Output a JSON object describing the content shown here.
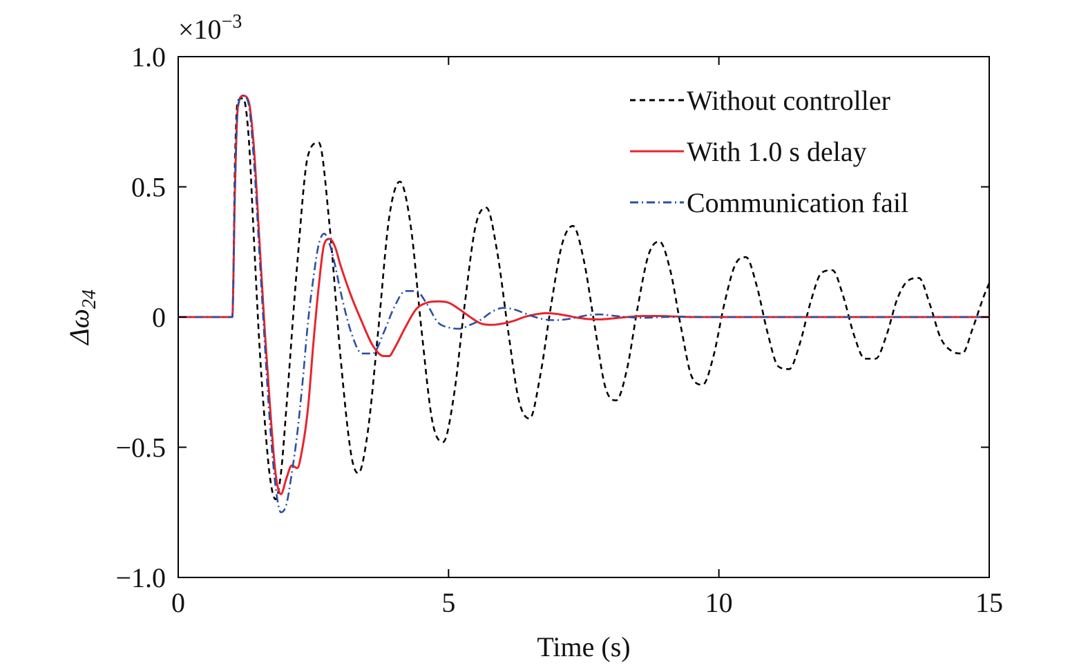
{
  "chart_data": {
    "type": "line",
    "title": "",
    "xlabel": "Time (s)",
    "ylabel_main": "Δω",
    "ylabel_sub": "24",
    "y_scale_prefix": "×10",
    "y_scale_exponent": "−3",
    "xlim": [
      0,
      15
    ],
    "ylim": [
      -1.0,
      1.0
    ],
    "x_ticks": [
      0,
      5,
      10,
      15
    ],
    "x_tick_labels": [
      "0",
      "5",
      "10",
      "15"
    ],
    "y_ticks": [
      1.0,
      0.5,
      0,
      -0.5,
      -1.0
    ],
    "y_tick_labels": [
      "1.0",
      "0.5",
      "0",
      "−0.5",
      "−1.0"
    ],
    "grid": false,
    "legend_position": "top-right",
    "series": [
      {
        "name": "Without controller",
        "color": "#000000",
        "style": "dashed",
        "x": [
          0,
          1.0,
          1.05,
          1.1,
          1.2,
          1.3,
          1.4,
          1.5,
          1.6,
          1.7,
          1.8,
          1.9,
          2.0,
          2.2,
          2.4,
          2.6,
          2.8,
          3.0,
          3.2,
          3.33,
          3.5,
          3.7,
          3.9,
          4.1,
          4.3,
          4.5,
          4.7,
          4.9,
          5.1,
          5.3,
          5.5,
          5.7,
          5.9,
          6.1,
          6.3,
          6.5,
          6.7,
          6.9,
          7.1,
          7.3,
          7.5,
          7.7,
          7.9,
          8.1,
          8.3,
          8.5,
          8.7,
          8.9,
          9.1,
          9.3,
          9.5,
          9.7,
          9.9,
          10.1,
          10.3,
          10.5,
          10.7,
          10.9,
          11.1,
          11.3,
          11.5,
          11.7,
          11.9,
          12.1,
          12.3,
          12.5,
          12.7,
          12.9,
          13.1,
          13.3,
          13.5,
          13.7,
          13.9,
          14.1,
          14.3,
          14.5,
          14.7,
          14.9,
          15.0
        ],
        "values": [
          0,
          0,
          0.6,
          0.83,
          0.84,
          0.7,
          0.3,
          -0.1,
          -0.4,
          -0.62,
          -0.7,
          -0.6,
          -0.35,
          0.2,
          0.62,
          0.67,
          0.35,
          -0.15,
          -0.53,
          -0.6,
          -0.45,
          -0.05,
          0.38,
          0.52,
          0.35,
          -0.05,
          -0.4,
          -0.48,
          -0.3,
          0.05,
          0.35,
          0.42,
          0.25,
          -0.05,
          -0.32,
          -0.39,
          -0.22,
          0.05,
          0.28,
          0.35,
          0.22,
          -0.03,
          -0.27,
          -0.32,
          -0.2,
          0.04,
          0.24,
          0.29,
          0.18,
          -0.04,
          -0.23,
          -0.26,
          -0.15,
          0.05,
          0.2,
          0.23,
          0.12,
          -0.06,
          -0.19,
          -0.2,
          -0.1,
          0.06,
          0.17,
          0.18,
          0.08,
          -0.07,
          -0.16,
          -0.16,
          -0.07,
          0.07,
          0.14,
          0.15,
          0.05,
          -0.08,
          -0.13,
          -0.14,
          -0.04,
          0.08,
          0.13
        ]
      },
      {
        "name": "With 1.0 s delay",
        "color": "#e8242c",
        "style": "solid",
        "x": [
          0,
          1.0,
          1.05,
          1.1,
          1.2,
          1.3,
          1.4,
          1.5,
          1.6,
          1.7,
          1.8,
          1.9,
          2.0,
          2.1,
          2.2,
          2.3,
          2.4,
          2.5,
          2.6,
          2.7,
          2.8,
          2.9,
          3.0,
          3.2,
          3.4,
          3.6,
          3.8,
          3.9,
          4.0,
          4.2,
          4.4,
          4.6,
          4.8,
          5.0,
          5.2,
          5.4,
          5.6,
          5.8,
          6.0,
          6.2,
          6.4,
          6.6,
          6.8,
          7.0,
          7.2,
          7.4,
          7.6,
          7.8,
          8.0,
          8.3,
          8.6,
          8.9,
          9.2,
          9.5,
          10.0,
          11.0,
          12.0,
          13.0,
          14.0,
          15.0
        ],
        "values": [
          0,
          0,
          0.5,
          0.8,
          0.85,
          0.83,
          0.65,
          0.3,
          -0.05,
          -0.35,
          -0.6,
          -0.68,
          -0.62,
          -0.57,
          -0.58,
          -0.5,
          -0.35,
          -0.1,
          0.12,
          0.28,
          0.3,
          0.27,
          0.2,
          0.08,
          -0.02,
          -0.11,
          -0.15,
          -0.15,
          -0.12,
          -0.04,
          0.03,
          0.055,
          0.06,
          0.055,
          0.03,
          0.0,
          -0.025,
          -0.03,
          -0.025,
          -0.015,
          0.0,
          0.01,
          0.015,
          0.012,
          0.005,
          -0.003,
          -0.008,
          -0.009,
          -0.006,
          0.0,
          0.004,
          0.004,
          0.002,
          0.0,
          0,
          0,
          0,
          0,
          0,
          0
        ]
      },
      {
        "name": "Communication fail",
        "color": "#2b4fa3",
        "style": "dashdot",
        "x": [
          0,
          1.0,
          1.05,
          1.1,
          1.2,
          1.3,
          1.4,
          1.5,
          1.6,
          1.7,
          1.8,
          1.9,
          2.0,
          2.1,
          2.2,
          2.3,
          2.4,
          2.5,
          2.6,
          2.7,
          2.8,
          2.9,
          3.0,
          3.2,
          3.4,
          3.6,
          3.8,
          4.0,
          4.2,
          4.4,
          4.6,
          4.8,
          5.0,
          5.2,
          5.4,
          5.6,
          5.8,
          6.0,
          6.2,
          6.4,
          6.6,
          6.8,
          7.0,
          7.2,
          7.4,
          7.6,
          7.8,
          8.0,
          8.3,
          8.6,
          9.0,
          9.5,
          10.0,
          11.0,
          12.0,
          13.0,
          14.0,
          15.0
        ],
        "values": [
          0,
          0,
          0.5,
          0.8,
          0.85,
          0.82,
          0.6,
          0.25,
          -0.1,
          -0.42,
          -0.65,
          -0.75,
          -0.72,
          -0.6,
          -0.45,
          -0.25,
          -0.02,
          0.15,
          0.28,
          0.32,
          0.28,
          0.2,
          0.1,
          -0.06,
          -0.14,
          -0.14,
          -0.06,
          0.04,
          0.1,
          0.1,
          0.05,
          -0.02,
          -0.04,
          -0.045,
          -0.03,
          -0.01,
          0.02,
          0.035,
          0.03,
          0.015,
          0.0,
          -0.01,
          -0.012,
          -0.008,
          0.0,
          0.008,
          0.01,
          0.006,
          0.0,
          -0.003,
          0.0,
          0.001,
          0,
          0,
          0,
          0,
          0,
          0
        ]
      }
    ]
  }
}
